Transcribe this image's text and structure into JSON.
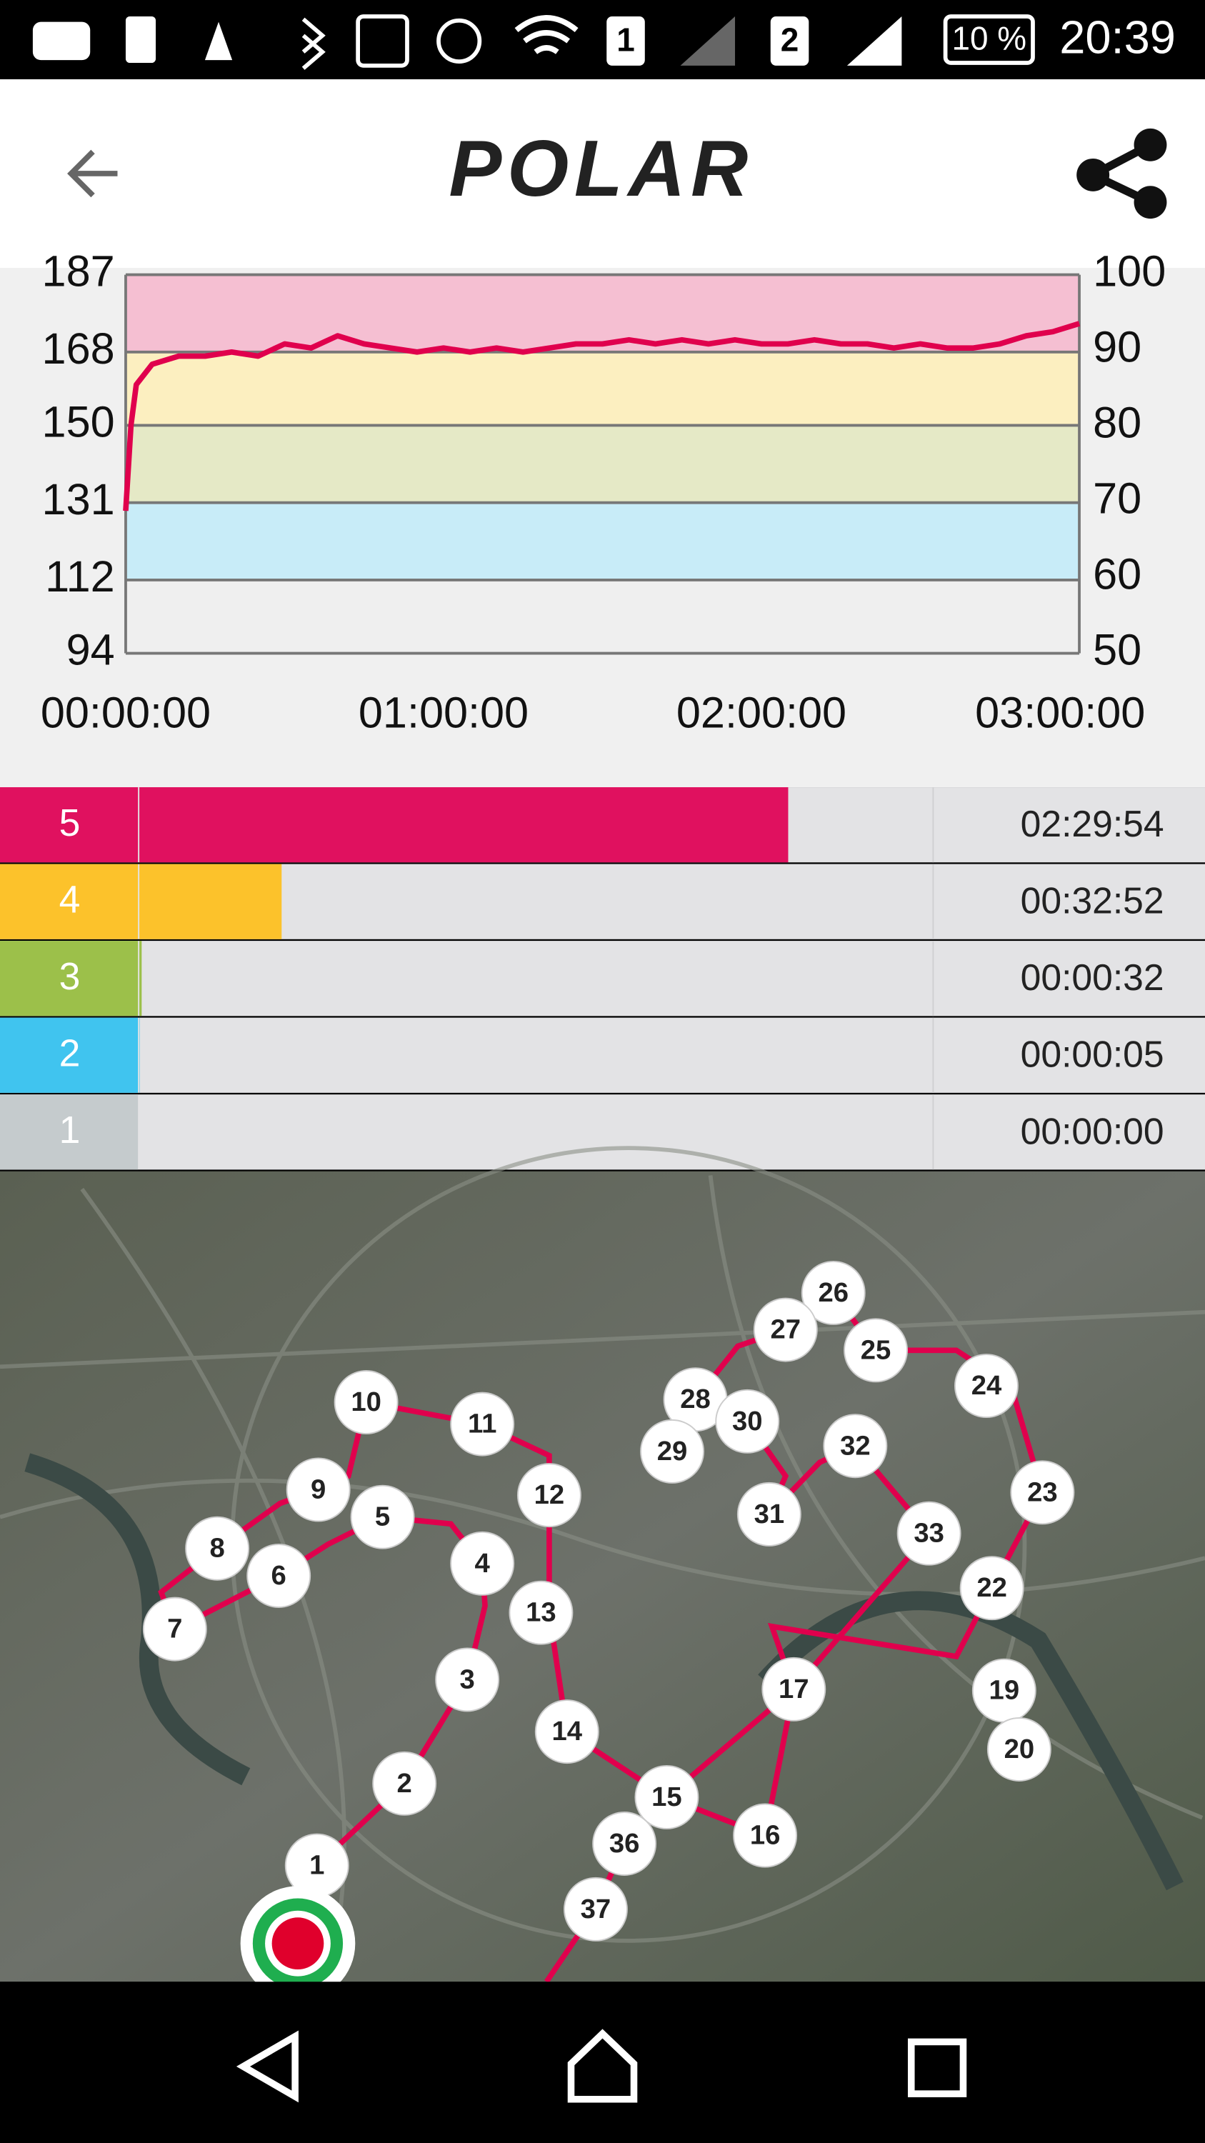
{
  "status_bar": {
    "sim1": "1",
    "sim2": "2",
    "battery": "10 %",
    "time": "20:39"
  },
  "header": {
    "logo": "POLAR"
  },
  "chart_data": {
    "type": "line",
    "x": [
      0,
      60,
      120,
      300,
      600,
      900,
      1200,
      1500,
      1800,
      2100,
      2400,
      2700,
      3000,
      3300,
      3600,
      3900,
      4200,
      4500,
      4800,
      5100,
      5400,
      5700,
      6000,
      6300,
      6600,
      6900,
      7200,
      7500,
      7800,
      8100,
      8400,
      8700,
      9000,
      9300,
      9600,
      9900,
      10200,
      10500,
      10800
    ],
    "series": [
      {
        "color": "#e0004d",
        "values": [
          129,
          150,
          160,
          165,
          167,
          167,
          168,
          167,
          170,
          169,
          172,
          170,
          169,
          168,
          169,
          168,
          169,
          168,
          169,
          170,
          170,
          171,
          170,
          171,
          170,
          171,
          170,
          170,
          171,
          170,
          170,
          169,
          170,
          169,
          169,
          170,
          172,
          173,
          175
        ]
      }
    ],
    "xlim": [
      0,
      10800
    ],
    "xticks": [
      {
        "value": 0,
        "label": "00:00:00"
      },
      {
        "value": 3600,
        "label": "01:00:00"
      },
      {
        "value": 7200,
        "label": "02:00:00"
      },
      {
        "value": 10800,
        "label": "03:00:00"
      }
    ],
    "ylim": [
      94,
      187
    ],
    "yticks": [
      94,
      112,
      131,
      150,
      168,
      187
    ],
    "y2lim": [
      50,
      100
    ],
    "y2ticks": [
      50,
      60,
      70,
      80,
      90,
      100
    ],
    "band_colors": [
      "#efefef",
      "#c8ecf8",
      "#e5e9c6",
      "#fcefc0",
      "#f5bfd2"
    ]
  },
  "zones": [
    {
      "zone": "5",
      "time": "02:29:54",
      "seconds": 8994,
      "color": "#e0115f"
    },
    {
      "zone": "4",
      "time": "00:32:52",
      "seconds": 1972,
      "color": "#fcc22b"
    },
    {
      "zone": "3",
      "time": "00:00:32",
      "seconds": 32,
      "color": "#9cc04a"
    },
    {
      "zone": "2",
      "time": "00:00:05",
      "seconds": 5,
      "color": "#40c4ef"
    },
    {
      "zone": "1",
      "time": "00:00:00",
      "seconds": 0,
      "color": "#c5cbcd"
    }
  ],
  "map": {
    "markers": [
      "1",
      "2",
      "3",
      "4",
      "5",
      "6",
      "7",
      "8",
      "9",
      "10",
      "11",
      "12",
      "13",
      "14",
      "15",
      "16",
      "17",
      "19",
      "20",
      "22",
      "23",
      "24",
      "25",
      "26",
      "27",
      "28",
      "29",
      "30",
      "31",
      "32",
      "33",
      "36",
      "37"
    ]
  }
}
